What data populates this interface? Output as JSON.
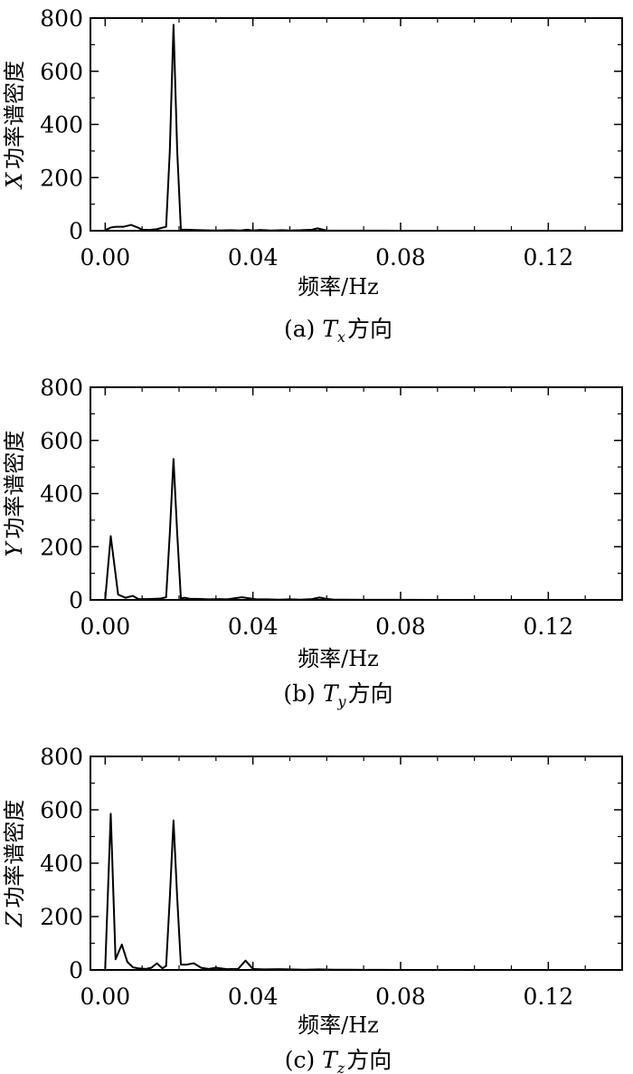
{
  "chart_data": [
    {
      "type": "line",
      "ylabel_letter": "X",
      "ylabel_rest": "功率谱密度",
      "xlabel": "频率/Hz",
      "caption_prefix": "(a) ",
      "caption_T": "T",
      "caption_sub": "x",
      "caption_suffix": "方向",
      "xlim": [
        -0.004,
        0.14
      ],
      "ylim": [
        0,
        800
      ],
      "x_ticks": [
        0.0,
        0.04,
        0.08,
        0.12
      ],
      "x_tick_labels": [
        "0.00",
        "0.04",
        "0.08",
        "0.12"
      ],
      "y_ticks": [
        0,
        200,
        400,
        600,
        800
      ],
      "y_tick_labels": [
        "0",
        "200",
        "400",
        "600",
        "800"
      ],
      "grid": false,
      "series": [
        {
          "x": [
            0.0,
            0.0015,
            0.003,
            0.005,
            0.007,
            0.0085,
            0.01,
            0.012,
            0.014,
            0.0165,
            0.0175,
            0.0185,
            0.0195,
            0.0205,
            0.022,
            0.024,
            0.026,
            0.03,
            0.034,
            0.0365,
            0.0385,
            0.04,
            0.042,
            0.045,
            0.048,
            0.05,
            0.053,
            0.056,
            0.0575,
            0.059,
            0.06,
            0.065,
            0.07,
            0.075,
            0.08,
            0.09,
            0.1,
            0.11,
            0.12,
            0.13,
            0.14
          ],
          "y": [
            2,
            12,
            15,
            15,
            22,
            14,
            4,
            3,
            6,
            15,
            300,
            775,
            300,
            4,
            4,
            3,
            2,
            1,
            2,
            1,
            4,
            1,
            3,
            1,
            2,
            1,
            2,
            4,
            9,
            4,
            1,
            0.5,
            0.5,
            0.3,
            0.2,
            0.1,
            0.1,
            0.1,
            0.1,
            0.1,
            0.1
          ]
        }
      ]
    },
    {
      "type": "line",
      "ylabel_letter": "Y",
      "ylabel_rest": "功率谱密度",
      "xlabel": "频率/Hz",
      "caption_prefix": "(b) ",
      "caption_T": "T",
      "caption_sub": "y",
      "caption_suffix": "方向",
      "xlim": [
        -0.004,
        0.14
      ],
      "ylim": [
        0,
        800
      ],
      "x_ticks": [
        0.0,
        0.04,
        0.08,
        0.12
      ],
      "x_tick_labels": [
        "0.00",
        "0.04",
        "0.08",
        "0.12"
      ],
      "y_ticks": [
        0,
        200,
        400,
        600,
        800
      ],
      "y_tick_labels": [
        "0",
        "200",
        "400",
        "600",
        "800"
      ],
      "grid": false,
      "series": [
        {
          "x": [
            0.0,
            0.0015,
            0.0035,
            0.0055,
            0.0075,
            0.009,
            0.011,
            0.013,
            0.015,
            0.0165,
            0.0175,
            0.0185,
            0.0195,
            0.0205,
            0.0215,
            0.023,
            0.025,
            0.028,
            0.031,
            0.033,
            0.035,
            0.037,
            0.039,
            0.041,
            0.044,
            0.047,
            0.05,
            0.053,
            0.056,
            0.058,
            0.06,
            0.062,
            0.065,
            0.07,
            0.08,
            0.09,
            0.1,
            0.11,
            0.12,
            0.13,
            0.14
          ],
          "y": [
            2,
            240,
            20,
            8,
            15,
            3,
            3,
            4,
            5,
            10,
            250,
            530,
            250,
            5,
            8,
            4,
            4,
            2,
            3,
            2,
            6,
            10,
            6,
            2,
            2,
            1,
            2,
            1,
            3,
            9,
            4,
            1,
            1,
            0.5,
            0.3,
            0.2,
            0.1,
            0.1,
            0.1,
            0.1,
            0.1
          ]
        }
      ]
    },
    {
      "type": "line",
      "ylabel_letter": "Z",
      "ylabel_rest": "功率谱密度",
      "xlabel": "频率/Hz",
      "caption_prefix": "(c) ",
      "caption_T": "T",
      "caption_sub": "z",
      "caption_suffix": "方向",
      "xlim": [
        -0.004,
        0.14
      ],
      "ylim": [
        0,
        800
      ],
      "x_ticks": [
        0.0,
        0.04,
        0.08,
        0.12
      ],
      "x_tick_labels": [
        "0.00",
        "0.04",
        "0.08",
        "0.12"
      ],
      "y_ticks": [
        0,
        200,
        400,
        600,
        800
      ],
      "y_tick_labels": [
        "0",
        "200",
        "400",
        "600",
        "800"
      ],
      "grid": false,
      "series": [
        {
          "x": [
            0.0,
            0.0015,
            0.0028,
            0.0045,
            0.006,
            0.0075,
            0.009,
            0.011,
            0.0125,
            0.014,
            0.0155,
            0.0165,
            0.0175,
            0.0185,
            0.0195,
            0.0205,
            0.022,
            0.024,
            0.026,
            0.028,
            0.03,
            0.033,
            0.036,
            0.038,
            0.04,
            0.043,
            0.047,
            0.05,
            0.054,
            0.058,
            0.062,
            0.066,
            0.07,
            0.075,
            0.08,
            0.09,
            0.1,
            0.11,
            0.12,
            0.13,
            0.14
          ],
          "y": [
            5,
            585,
            40,
            95,
            30,
            10,
            6,
            4,
            8,
            25,
            6,
            15,
            270,
            560,
            270,
            20,
            20,
            25,
            8,
            4,
            8,
            3,
            4,
            35,
            4,
            2,
            3,
            2,
            1,
            2,
            1,
            1,
            0.5,
            0.3,
            0.2,
            0.1,
            0.1,
            0.1,
            0.1,
            0.1,
            0.1
          ]
        }
      ]
    }
  ]
}
